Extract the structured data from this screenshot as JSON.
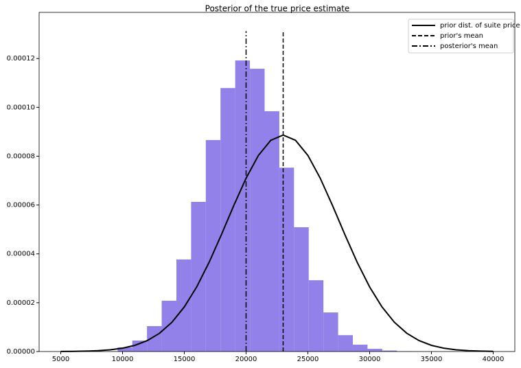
{
  "chart_data": {
    "type": "histogram",
    "title": "Posterior of the true price estimate",
    "bins": [
      9600,
      10790,
      11980,
      13170,
      14360,
      15550,
      16740,
      17930,
      19120,
      20310,
      21500,
      22690,
      23880,
      25070,
      26260,
      27450,
      28640,
      29830,
      31020,
      32210,
      33400
    ],
    "counts": [
      1.7e-06,
      4.5e-06,
      1.04e-05,
      2.08e-05,
      3.77e-05,
      6.13e-05,
      8.66e-05,
      0.0001079,
      0.0001192,
      0.0001158,
      9.84e-05,
      7.53e-05,
      5.09e-05,
      2.92e-05,
      1.6e-05,
      6.7e-06,
      2.8e-06,
      1.1e-06,
      4e-07,
      1e-07
    ],
    "color": "#9381ea",
    "line": {
      "name": "prior dist. of suite price",
      "color": "#000000",
      "x": [
        5000,
        6000,
        7000,
        8000,
        9000,
        10000,
        11000,
        12000,
        13000,
        14000,
        15000,
        16000,
        17000,
        18000,
        19000,
        20000,
        21000,
        22000,
        23000,
        24000,
        25000,
        26000,
        27000,
        28000,
        29000,
        30000,
        31000,
        32000,
        33000,
        34000,
        35000,
        36000,
        37000,
        38000,
        39000,
        40000
      ],
      "values": [
        2.97e-08,
        7.06e-08,
        1.595e-07,
        3.43e-07,
        7.01e-07,
        1.366e-06,
        2.533e-06,
        4.469e-06,
        7.506e-06,
        1.2e-05,
        1.826e-05,
        2.644e-05,
        3.645e-05,
        4.783e-05,
        5.974e-05,
        7.099e-05,
        8.033e-05,
        8.65e-05,
        8.866e-05,
        8.65e-05,
        8.033e-05,
        7.099e-05,
        5.974e-05,
        4.783e-05,
        3.645e-05,
        2.644e-05,
        1.826e-05,
        1.2e-05,
        7.506e-06,
        4.469e-06,
        2.533e-06,
        1.366e-06,
        7.01e-07,
        3.43e-07,
        1.595e-07,
        7.06e-08
      ]
    },
    "vlines": [
      {
        "name": "prior's mean",
        "x": 23000,
        "ymin": 0,
        "ymax": 0.0001312,
        "color": "#000000",
        "style": "dashed"
      },
      {
        "name": "posterior's mean",
        "x": 20000,
        "ymin": 0,
        "ymax": 0.0001312,
        "color": "#000000",
        "style": "dashdot"
      }
    ],
    "xlim": [
      3250,
      41750
    ],
    "ylim": [
      0,
      0.0001389
    ],
    "xticks": [
      5000,
      10000,
      15000,
      20000,
      25000,
      30000,
      35000,
      40000
    ],
    "yticks": [
      {
        "value": 0,
        "label": "0.00000"
      },
      {
        "value": 2e-05,
        "label": "0.00002"
      },
      {
        "value": 4e-05,
        "label": "0.00004"
      },
      {
        "value": 6e-05,
        "label": "0.00006"
      },
      {
        "value": 8e-05,
        "label": "0.00008"
      },
      {
        "value": 0.0001,
        "label": "0.00010"
      },
      {
        "value": 0.00012,
        "label": "0.00012"
      }
    ],
    "legend": "upper right"
  }
}
